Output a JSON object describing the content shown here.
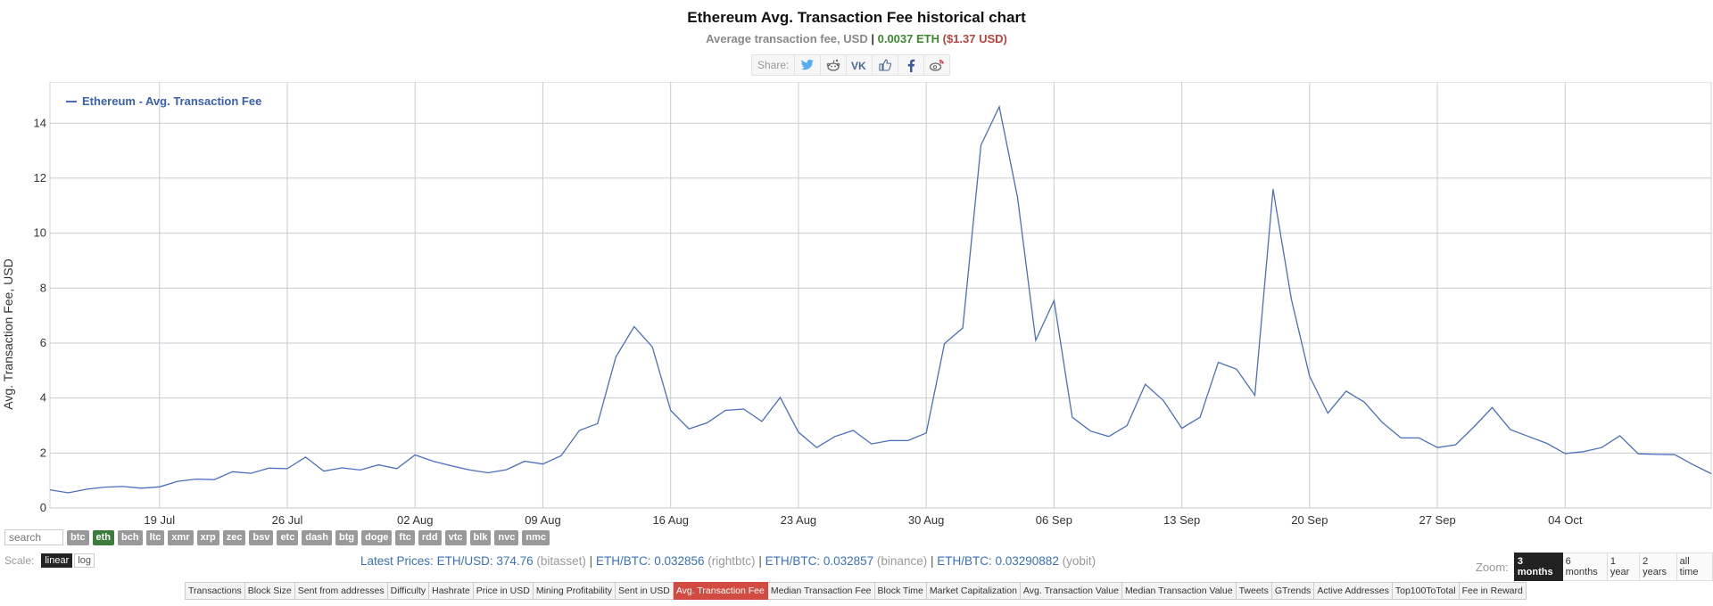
{
  "page": {
    "title": "Ethereum Avg. Transaction Fee historical chart",
    "subtitle": {
      "label": "Average transaction fee, USD",
      "separator": "|",
      "eth_value": "0.0037 ETH",
      "usd_value": "($1.37 USD)"
    },
    "share": {
      "label": "Share:",
      "icons": [
        "twitter-icon",
        "reddit-icon",
        "vk-icon",
        "like-icon",
        "facebook-icon",
        "weibo-icon"
      ]
    }
  },
  "chart_data": {
    "type": "line",
    "title": "",
    "xlabel": "",
    "ylabel": "Avg. Transaction Fee, USD",
    "ylim": [
      0,
      15.5
    ],
    "yticks": [
      0,
      2,
      4,
      6,
      8,
      10,
      12,
      14
    ],
    "grid": true,
    "legend_position": "top-left",
    "x_start": "2020-07-13",
    "x_end": "2020-10-10",
    "xticks": [
      {
        "date": "2020-07-19",
        "label": "19 Jul"
      },
      {
        "date": "2020-07-26",
        "label": "26 Jul"
      },
      {
        "date": "2020-08-02",
        "label": "02 Aug"
      },
      {
        "date": "2020-08-09",
        "label": "09 Aug"
      },
      {
        "date": "2020-08-16",
        "label": "16 Aug"
      },
      {
        "date": "2020-08-23",
        "label": "23 Aug"
      },
      {
        "date": "2020-08-30",
        "label": "30 Aug"
      },
      {
        "date": "2020-09-06",
        "label": "06 Sep"
      },
      {
        "date": "2020-09-13",
        "label": "13 Sep"
      },
      {
        "date": "2020-09-20",
        "label": "20 Sep"
      },
      {
        "date": "2020-09-27",
        "label": "27 Sep"
      },
      {
        "date": "2020-10-04",
        "label": "04 Oct"
      }
    ],
    "series": [
      {
        "name": "Ethereum - Avg. Transaction Fee",
        "color": "#4a6fbf",
        "points": [
          [
            "2020-07-13",
            0.66
          ],
          [
            "2020-07-14",
            0.55
          ],
          [
            "2020-07-15",
            0.68
          ],
          [
            "2020-07-16",
            0.76
          ],
          [
            "2020-07-17",
            0.78
          ],
          [
            "2020-07-18",
            0.72
          ],
          [
            "2020-07-19",
            0.77
          ],
          [
            "2020-07-20",
            0.97
          ],
          [
            "2020-07-21",
            1.05
          ],
          [
            "2020-07-22",
            1.03
          ],
          [
            "2020-07-23",
            1.32
          ],
          [
            "2020-07-24",
            1.26
          ],
          [
            "2020-07-25",
            1.45
          ],
          [
            "2020-07-26",
            1.43
          ],
          [
            "2020-07-27",
            1.85
          ],
          [
            "2020-07-28",
            1.34
          ],
          [
            "2020-07-29",
            1.46
          ],
          [
            "2020-07-30",
            1.38
          ],
          [
            "2020-07-31",
            1.57
          ],
          [
            "2020-08-01",
            1.43
          ],
          [
            "2020-08-02",
            1.93
          ],
          [
            "2020-08-03",
            1.7
          ],
          [
            "2020-08-04",
            1.53
          ],
          [
            "2020-08-05",
            1.38
          ],
          [
            "2020-08-06",
            1.28
          ],
          [
            "2020-08-07",
            1.39
          ],
          [
            "2020-08-08",
            1.7
          ],
          [
            "2020-08-09",
            1.6
          ],
          [
            "2020-08-10",
            1.9
          ],
          [
            "2020-08-11",
            2.82
          ],
          [
            "2020-08-12",
            3.07
          ],
          [
            "2020-08-13",
            5.5
          ],
          [
            "2020-08-14",
            6.6
          ],
          [
            "2020-08-15",
            5.86
          ],
          [
            "2020-08-16",
            3.55
          ],
          [
            "2020-08-17",
            2.88
          ],
          [
            "2020-08-18",
            3.1
          ],
          [
            "2020-08-19",
            3.55
          ],
          [
            "2020-08-20",
            3.6
          ],
          [
            "2020-08-21",
            3.15
          ],
          [
            "2020-08-22",
            4.02
          ],
          [
            "2020-08-23",
            2.76
          ],
          [
            "2020-08-24",
            2.2
          ],
          [
            "2020-08-25",
            2.6
          ],
          [
            "2020-08-26",
            2.82
          ],
          [
            "2020-08-27",
            2.33
          ],
          [
            "2020-08-28",
            2.45
          ],
          [
            "2020-08-29",
            2.45
          ],
          [
            "2020-08-30",
            2.73
          ],
          [
            "2020-08-31",
            5.98
          ],
          [
            "2020-09-01",
            6.55
          ],
          [
            "2020-09-02",
            13.2
          ],
          [
            "2020-09-03",
            14.6
          ],
          [
            "2020-09-04",
            11.3
          ],
          [
            "2020-09-05",
            6.1
          ],
          [
            "2020-09-06",
            7.55
          ],
          [
            "2020-09-07",
            3.3
          ],
          [
            "2020-09-08",
            2.8
          ],
          [
            "2020-09-09",
            2.6
          ],
          [
            "2020-09-10",
            3.0
          ],
          [
            "2020-09-11",
            4.5
          ],
          [
            "2020-09-12",
            3.9
          ],
          [
            "2020-09-13",
            2.9
          ],
          [
            "2020-09-14",
            3.3
          ],
          [
            "2020-09-15",
            5.3
          ],
          [
            "2020-09-16",
            5.05
          ],
          [
            "2020-09-17",
            4.1
          ],
          [
            "2020-09-18",
            11.6
          ],
          [
            "2020-09-19",
            7.6
          ],
          [
            "2020-09-20",
            4.8
          ],
          [
            "2020-09-21",
            3.45
          ],
          [
            "2020-09-22",
            4.25
          ],
          [
            "2020-09-23",
            3.85
          ],
          [
            "2020-09-24",
            3.1
          ],
          [
            "2020-09-25",
            2.55
          ],
          [
            "2020-09-26",
            2.55
          ],
          [
            "2020-09-27",
            2.2
          ],
          [
            "2020-09-28",
            2.3
          ],
          [
            "2020-09-29",
            2.95
          ],
          [
            "2020-09-30",
            3.65
          ],
          [
            "2020-10-01",
            2.85
          ],
          [
            "2020-10-02",
            2.6
          ],
          [
            "2020-10-03",
            2.35
          ],
          [
            "2020-10-04",
            1.98
          ],
          [
            "2020-10-05",
            2.05
          ],
          [
            "2020-10-06",
            2.2
          ],
          [
            "2020-10-07",
            2.63
          ],
          [
            "2020-10-08",
            1.97
          ],
          [
            "2020-10-09",
            1.95
          ],
          [
            "2020-10-10",
            1.94
          ],
          [
            "2020-10-11",
            1.58
          ],
          [
            "2020-10-12",
            1.25
          ]
        ]
      }
    ]
  },
  "controls": {
    "search_placeholder": "search",
    "coins": [
      {
        "label": "btc",
        "active": false
      },
      {
        "label": "eth",
        "active": true
      },
      {
        "label": "bch",
        "active": false
      },
      {
        "label": "ltc",
        "active": false
      },
      {
        "label": "xmr",
        "active": false
      },
      {
        "label": "xrp",
        "active": false
      },
      {
        "label": "zec",
        "active": false
      },
      {
        "label": "bsv",
        "active": false
      },
      {
        "label": "etc",
        "active": false
      },
      {
        "label": "dash",
        "active": false
      },
      {
        "label": "btg",
        "active": false
      },
      {
        "label": "doge",
        "active": false
      },
      {
        "label": "ftc",
        "active": false
      },
      {
        "label": "rdd",
        "active": false
      },
      {
        "label": "vtc",
        "active": false
      },
      {
        "label": "blk",
        "active": false
      },
      {
        "label": "nvc",
        "active": false
      },
      {
        "label": "nmc",
        "active": false
      }
    ],
    "scale_label": "Scale:",
    "scale_options": [
      {
        "label": "linear",
        "active": true
      },
      {
        "label": "log",
        "active": false
      }
    ],
    "prices": {
      "label": "Latest Prices:",
      "items": [
        {
          "pair": "ETH/USD: 374.76",
          "source": "(bitasset)"
        },
        {
          "pair": "ETH/BTC: 0.032856",
          "source": "(rightbtc)"
        },
        {
          "pair": "ETH/BTC: 0.032857",
          "source": "(binance)"
        },
        {
          "pair": "ETH/BTC: 0.03290882",
          "source": "(yobit)"
        }
      ]
    },
    "zoom_label": "Zoom:",
    "zoom_options": [
      {
        "label": "3 months",
        "active": true
      },
      {
        "label": "6 months",
        "active": false
      },
      {
        "label": "1 year",
        "active": false
      },
      {
        "label": "2 years",
        "active": false
      },
      {
        "label": "all time",
        "active": false
      }
    ],
    "metrics": [
      {
        "label": "Transactions",
        "active": false
      },
      {
        "label": "Block Size",
        "active": false
      },
      {
        "label": "Sent from addresses",
        "active": false
      },
      {
        "label": "Difficulty",
        "active": false
      },
      {
        "label": "Hashrate",
        "active": false
      },
      {
        "label": "Price in USD",
        "active": false
      },
      {
        "label": "Mining Profitability",
        "active": false
      },
      {
        "label": "Sent in USD",
        "active": false
      },
      {
        "label": "Avg. Transaction Fee",
        "active": true
      },
      {
        "label": "Median Transaction Fee",
        "active": false
      },
      {
        "label": "Block Time",
        "active": false
      },
      {
        "label": "Market Capitalization",
        "active": false
      },
      {
        "label": "Avg. Transaction Value",
        "active": false
      },
      {
        "label": "Median Transaction Value",
        "active": false
      },
      {
        "label": "Tweets",
        "active": false
      },
      {
        "label": "GTrends",
        "active": false
      },
      {
        "label": "Active Addresses",
        "active": false
      },
      {
        "label": "Top100ToTotal",
        "active": false
      },
      {
        "label": "Fee in Reward",
        "active": false
      }
    ]
  }
}
